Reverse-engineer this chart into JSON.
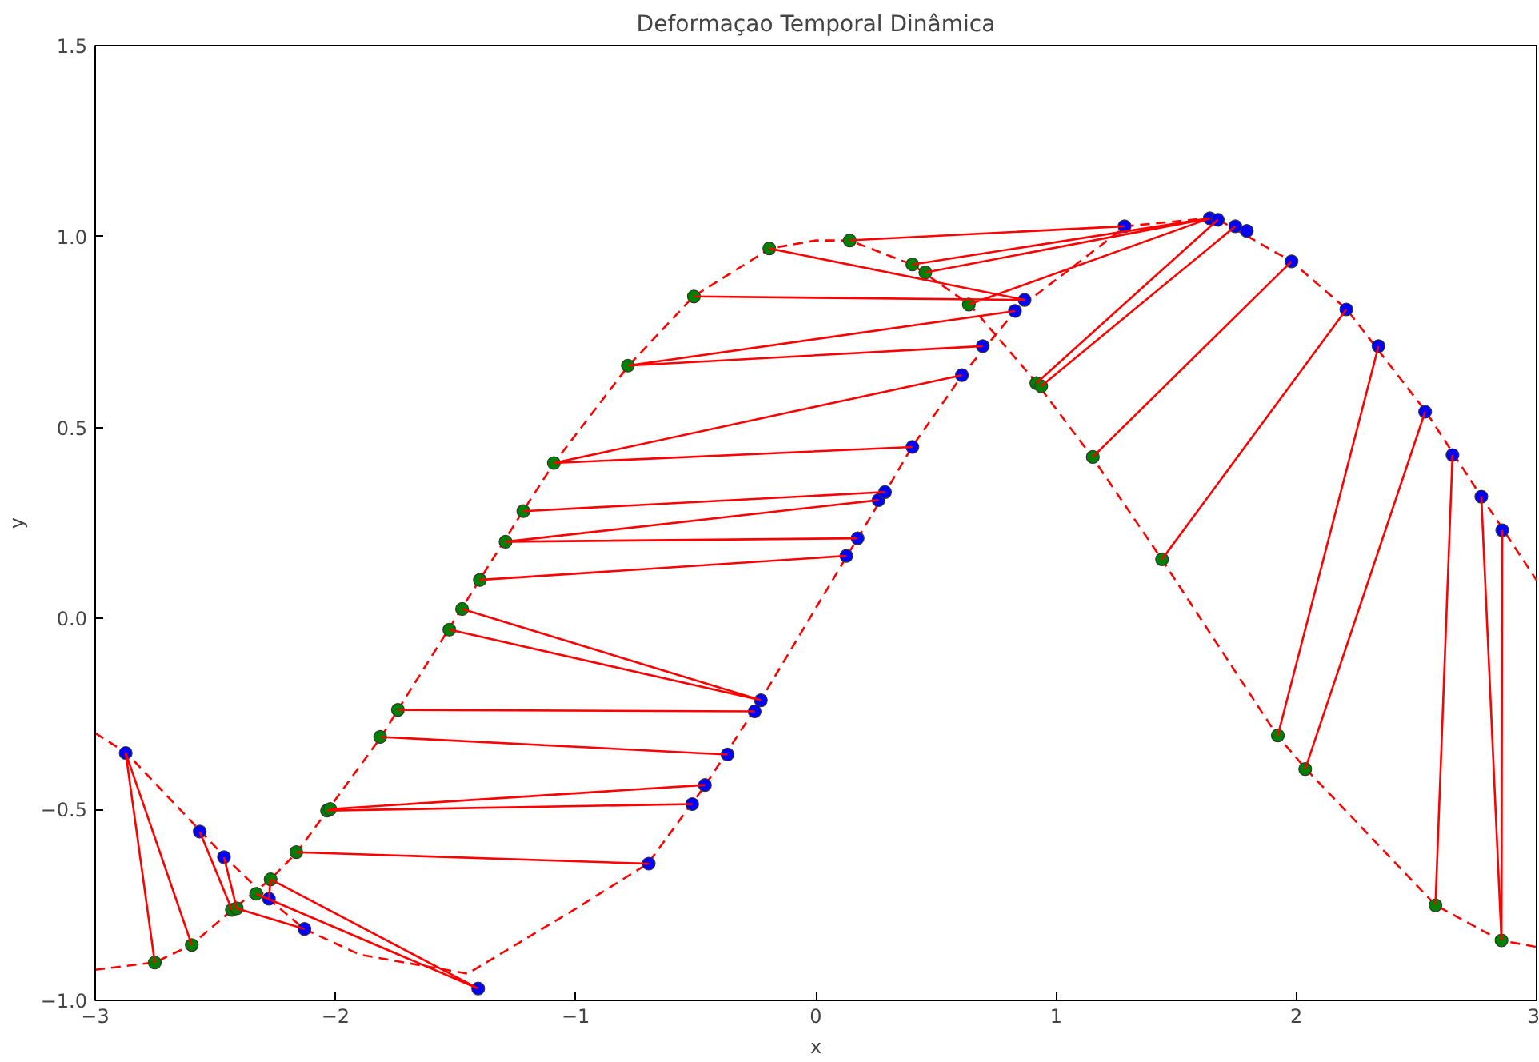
{
  "chart_data": {
    "type": "line",
    "title": "Deformaçao Temporal Dinâmica",
    "xlabel": "x",
    "ylabel": "y",
    "xlim": [
      -3,
      3
    ],
    "ylim": [
      -1.0,
      1.5
    ],
    "xticks": [
      {
        "value": -3,
        "label": "−3"
      },
      {
        "value": -2,
        "label": "−2"
      },
      {
        "value": -1,
        "label": "−1"
      },
      0,
      1,
      2,
      3
    ],
    "yticks": [
      {
        "value": -1.0,
        "label": "−1.0"
      },
      {
        "value": -0.5,
        "label": "−0.5"
      },
      {
        "value": 0.0,
        "label": "0.0"
      },
      {
        "value": 0.5,
        "label": "0.5"
      },
      {
        "value": 1.0,
        "label": "1.0"
      },
      {
        "value": 1.5,
        "label": "1.5"
      }
    ],
    "grid": false,
    "series": [
      {
        "line_style": "dashed",
        "color": "#ff0000",
        "x": [
          -3,
          -2.75,
          -2.6,
          -2.43,
          -2.27,
          -2.16,
          -2.03,
          -1.81,
          -1.74,
          -1.53,
          -1.4,
          -1.22,
          -1.09,
          -0.78,
          -0.51,
          -0.19,
          0,
          0.14,
          0.4,
          0.64,
          0.92,
          1.15,
          1.44,
          1.92,
          2.04,
          2.58,
          2.85,
          3
        ],
        "values": [
          -0.92,
          -0.9,
          -0.855,
          -0.763,
          -0.683,
          -0.612,
          -0.5,
          -0.31,
          -0.239,
          -0.029,
          0.101,
          0.281,
          0.407,
          0.662,
          0.843,
          0.969,
          0.99,
          0.99,
          0.927,
          0.822,
          0.616,
          0.423,
          0.155,
          -0.306,
          -0.394,
          -0.751,
          -0.843,
          -0.86
        ]
      },
      {
        "line_style": "dashed",
        "color": "#ff0000",
        "x": [
          -3,
          -2.87,
          -2.56,
          -2.46,
          -2.28,
          -2.13,
          -1.9,
          -1.45,
          -1.0,
          -0.7,
          -0.46,
          -0.23,
          0.13,
          0.29,
          0.4,
          0.61,
          0.83,
          1.29,
          1.66,
          1.98,
          2.21,
          2.54,
          2.77,
          3
        ],
        "values": [
          -0.3,
          -0.352,
          -0.558,
          -0.625,
          -0.734,
          -0.813,
          -0.88,
          -0.93,
          -0.76,
          -0.642,
          -0.436,
          -0.214,
          0.164,
          0.331,
          0.449,
          0.637,
          0.805,
          1.027,
          1.05,
          0.935,
          0.809,
          0.541,
          0.319,
          0.1
        ]
      },
      {
        "type": "scatter",
        "marker": "circle",
        "color": "#0000ff",
        "x": [
          -2.873,
          -2.565,
          -2.464,
          -2.277,
          -2.129,
          -1.406,
          -0.696,
          -0.515,
          -0.462,
          -0.368,
          -0.255,
          -0.229,
          0.127,
          0.174,
          0.261,
          0.288,
          0.402,
          0.608,
          0.695,
          0.829,
          0.869,
          1.285,
          1.64,
          1.673,
          1.746,
          1.794,
          1.98,
          2.208,
          2.342,
          2.536,
          2.65,
          2.77,
          2.857
        ],
        "values": [
          -0.352,
          -0.558,
          -0.625,
          -0.734,
          -0.813,
          -0.969,
          -0.642,
          -0.486,
          -0.436,
          -0.356,
          -0.243,
          -0.214,
          0.164,
          0.21,
          0.31,
          0.331,
          0.449,
          0.637,
          0.713,
          0.805,
          0.834,
          1.027,
          1.048,
          1.044,
          1.027,
          1.015,
          0.935,
          0.809,
          0.713,
          0.541,
          0.428,
          0.319,
          0.231
        ]
      },
      {
        "type": "scatter",
        "marker": "circle",
        "color": "#008000",
        "x": [
          -2.752,
          -2.598,
          -2.431,
          -2.411,
          -2.33,
          -2.27,
          -2.163,
          -2.035,
          -2.022,
          -1.814,
          -1.74,
          -1.526,
          -1.473,
          -1.399,
          -1.292,
          -1.218,
          -1.091,
          -0.783,
          -0.508,
          -0.194,
          0.141,
          0.402,
          0.456,
          0.637,
          0.918,
          0.938,
          1.153,
          1.441,
          1.923,
          2.037,
          2.579,
          2.854
        ],
        "values": [
          -0.901,
          -0.855,
          -0.763,
          -0.759,
          -0.721,
          -0.683,
          -0.612,
          -0.503,
          -0.499,
          -0.31,
          -0.239,
          -0.029,
          0.025,
          0.101,
          0.201,
          0.281,
          0.407,
          0.662,
          0.843,
          0.969,
          0.99,
          0.927,
          0.906,
          0.822,
          0.616,
          0.608,
          0.423,
          0.155,
          -0.306,
          -0.394,
          -0.751,
          -0.843
        ]
      },
      {
        "line_style": "solid",
        "color": "#ff0000",
        "x": [
          -2.873,
          -2.752,
          null,
          -2.873,
          -2.598,
          null,
          -2.565,
          -2.431,
          null,
          -2.464,
          -2.411,
          null,
          -2.411,
          -2.129,
          null,
          -2.33,
          -1.406,
          null,
          -2.27,
          -1.406,
          null,
          -2.27,
          -2.277,
          null,
          -2.163,
          -0.696,
          null,
          -2.035,
          -0.515,
          null,
          -2.022,
          -0.462,
          null,
          -1.814,
          -0.368,
          null,
          -1.74,
          -0.255,
          null,
          -1.526,
          -0.229,
          null,
          -1.473,
          -0.229,
          null,
          -1.399,
          0.127,
          null,
          -1.292,
          0.174,
          null,
          -1.292,
          0.261,
          null,
          -1.218,
          0.288,
          null,
          -1.091,
          0.402,
          null,
          -1.091,
          0.608,
          null,
          -0.783,
          0.695,
          null,
          -0.783,
          0.829,
          null,
          -0.508,
          0.869,
          null,
          -0.194,
          0.869,
          null,
          0.141,
          1.285,
          null,
          0.402,
          1.64,
          null,
          0.456,
          1.64,
          null,
          0.637,
          1.64,
          null,
          0.918,
          1.673,
          null,
          0.938,
          1.746,
          null,
          1.153,
          1.98,
          null,
          1.441,
          2.208,
          null,
          1.923,
          2.342,
          null,
          2.037,
          2.536,
          null,
          2.579,
          2.65,
          null,
          2.854,
          2.77,
          null,
          2.854,
          2.857
        ],
        "values": [
          -0.352,
          -0.901,
          null,
          -0.352,
          -0.855,
          null,
          -0.558,
          -0.763,
          null,
          -0.625,
          -0.759,
          null,
          -0.759,
          -0.813,
          null,
          -0.721,
          -0.969,
          null,
          -0.683,
          -0.969,
          null,
          -0.683,
          -0.734,
          null,
          -0.612,
          -0.642,
          null,
          -0.503,
          -0.486,
          null,
          -0.499,
          -0.436,
          null,
          -0.31,
          -0.356,
          null,
          -0.239,
          -0.243,
          null,
          -0.029,
          -0.214,
          null,
          0.025,
          -0.214,
          null,
          0.101,
          0.164,
          null,
          0.201,
          0.21,
          null,
          0.201,
          0.31,
          null,
          0.281,
          0.331,
          null,
          0.407,
          0.449,
          null,
          0.407,
          0.637,
          null,
          0.662,
          0.713,
          null,
          0.662,
          0.805,
          null,
          0.843,
          0.834,
          null,
          0.969,
          0.834,
          null,
          0.99,
          1.027,
          null,
          0.927,
          1.048,
          null,
          0.906,
          1.048,
          null,
          0.822,
          1.048,
          null,
          0.616,
          1.044,
          null,
          0.608,
          1.027,
          null,
          0.423,
          0.935,
          null,
          0.155,
          0.809,
          null,
          -0.306,
          0.713,
          null,
          -0.394,
          0.541,
          null,
          -0.751,
          0.428,
          null,
          -0.843,
          0.319,
          null,
          -0.843,
          0.231
        ]
      }
    ]
  }
}
